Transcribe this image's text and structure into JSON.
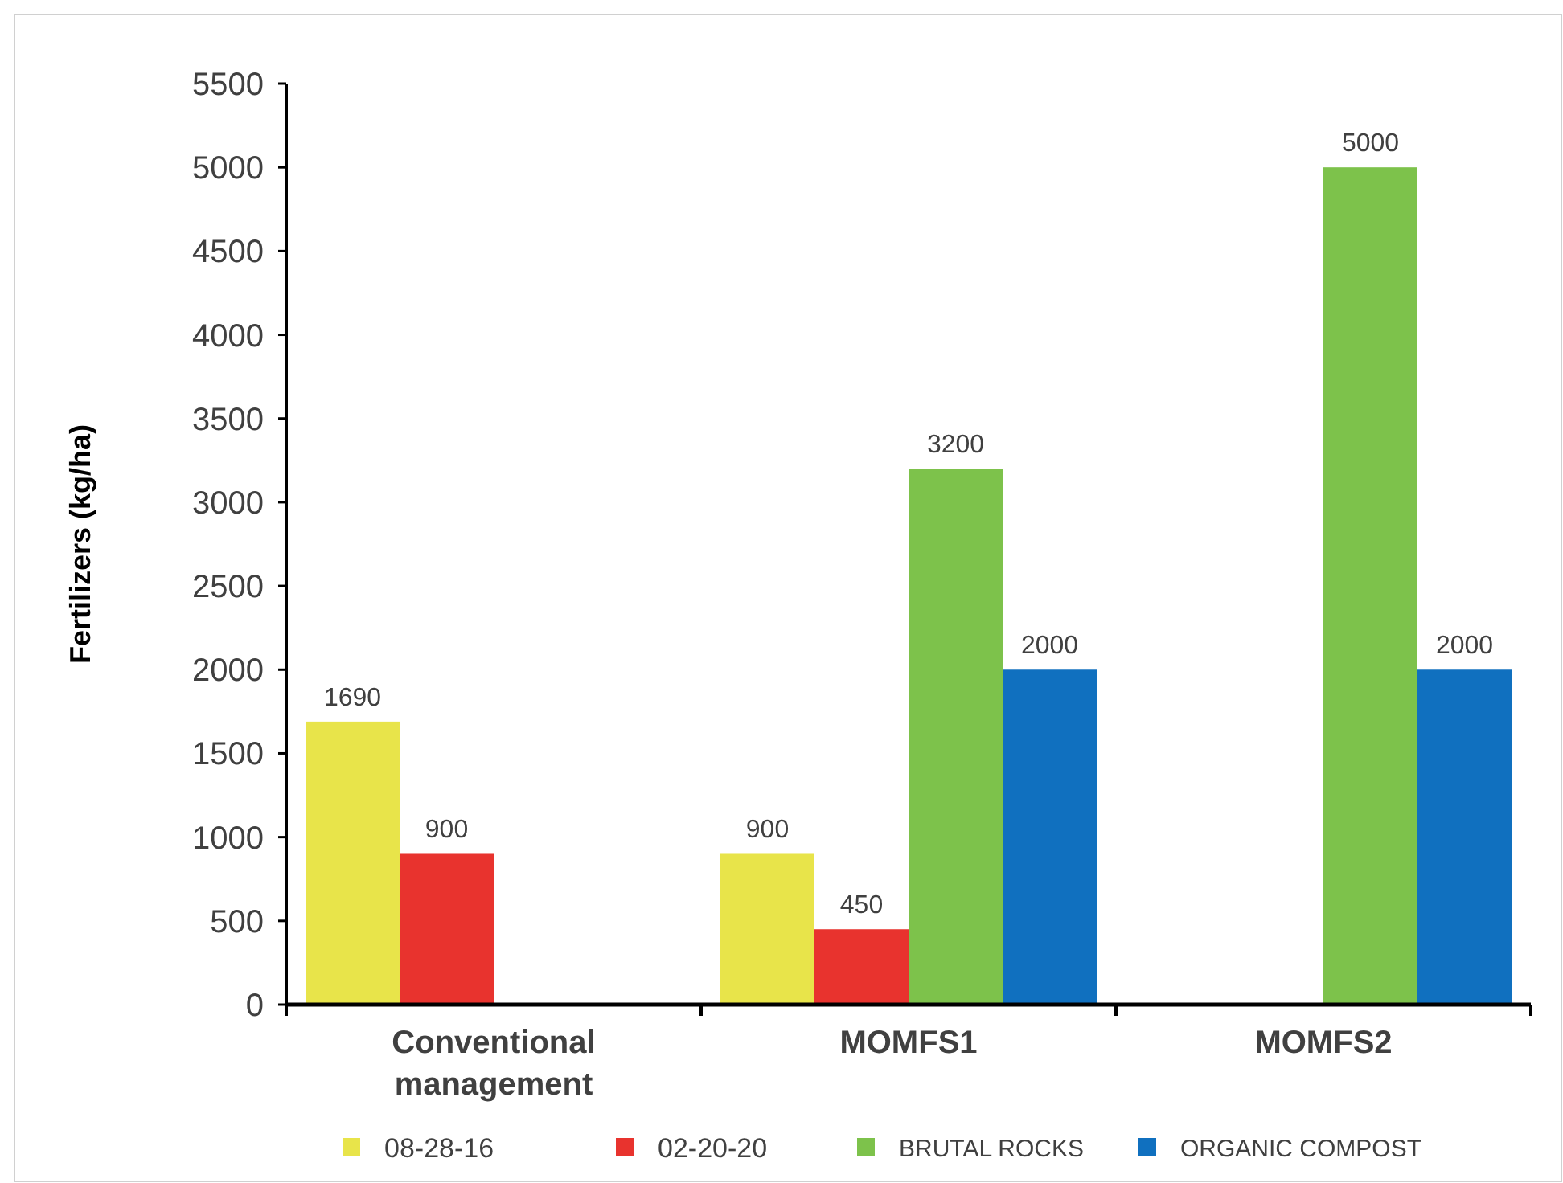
{
  "chart_data": {
    "type": "bar",
    "ylabel": "Fertilizers (kg/ha)",
    "categories": [
      "Conventional management",
      "MOMFS1",
      "MOMFS2"
    ],
    "series": [
      {
        "name": "08-28-16",
        "color": "#e8e44a",
        "values": [
          1690,
          900,
          null
        ]
      },
      {
        "name": "02-20-20",
        "color": "#e8332e",
        "values": [
          900,
          450,
          null
        ]
      },
      {
        "name": "BRUTAL ROCKS",
        "color": "#7dc24b",
        "values": [
          null,
          3200,
          5000
        ]
      },
      {
        "name": "ORGANIC COMPOST",
        "color": "#1070bf",
        "values": [
          null,
          2000,
          2000
        ]
      }
    ],
    "ylim": [
      0,
      5500
    ],
    "yticks": [
      0,
      500,
      1000,
      1500,
      2000,
      2500,
      3000,
      3500,
      4000,
      4500,
      5000,
      5500
    ],
    "data_labels": true,
    "legend": "bottom",
    "grid": false
  }
}
